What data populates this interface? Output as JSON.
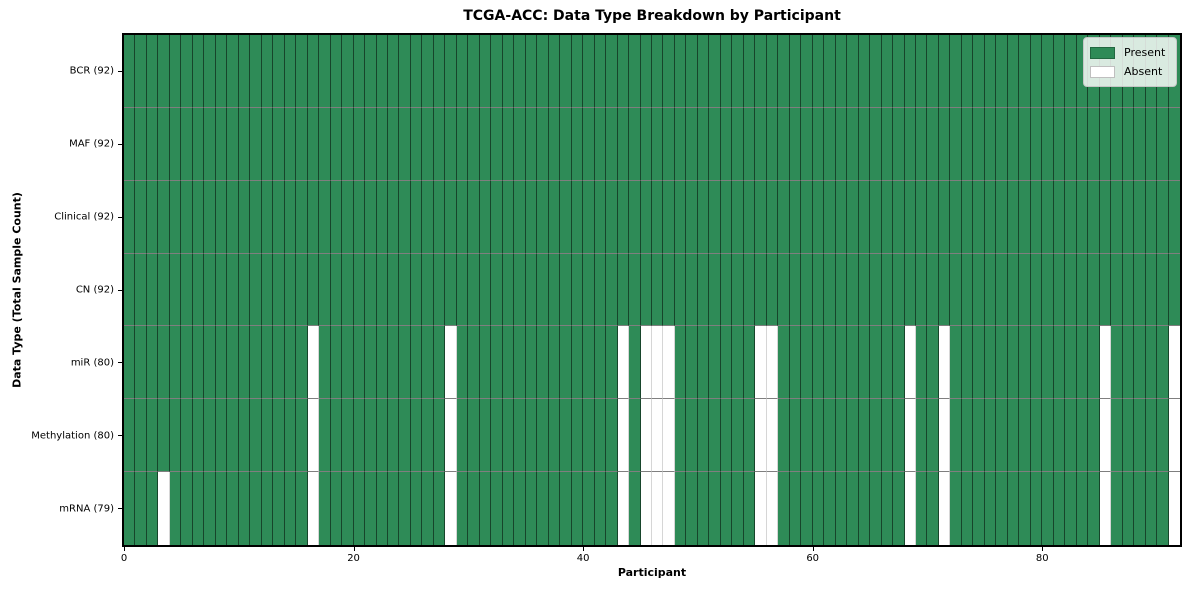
{
  "chart_data": {
    "type": "heatmap",
    "title": "TCGA-ACC: Data Type Breakdown by Participant",
    "xlabel": "Participant",
    "ylabel": "Data Type (Total Sample Count)",
    "n_participants": 92,
    "x_axis_range": [
      0,
      92
    ],
    "xticks": [
      0,
      20,
      40,
      60,
      80
    ],
    "grid": true,
    "legend_position": "upper right",
    "legend": [
      {
        "label": "Present",
        "color": "#2e8b57"
      },
      {
        "label": "Absent",
        "color": "#ffffff"
      }
    ],
    "colors": {
      "present": "#2e8b57",
      "absent": "#ffffff",
      "cell_edge": "#000000",
      "row_separator": "#7f7f7f",
      "plot_border": "#000000"
    },
    "rows": [
      {
        "data_type": "BCR",
        "label": "BCR (92)",
        "present_count": 92,
        "absent_participants": []
      },
      {
        "data_type": "MAF",
        "label": "MAF (92)",
        "present_count": 92,
        "absent_participants": []
      },
      {
        "data_type": "Clinical",
        "label": "Clinical (92)",
        "present_count": 92,
        "absent_participants": []
      },
      {
        "data_type": "CN",
        "label": "CN (92)",
        "present_count": 92,
        "absent_participants": []
      },
      {
        "data_type": "miR",
        "label": "miR (80)",
        "present_count": 80,
        "absent_participants": [
          16,
          28,
          43,
          45,
          46,
          47,
          55,
          56,
          68,
          71,
          85,
          91
        ]
      },
      {
        "data_type": "Methylation",
        "label": "Methylation (80)",
        "present_count": 80,
        "absent_participants": [
          16,
          28,
          43,
          45,
          46,
          47,
          55,
          56,
          68,
          71,
          85,
          91
        ]
      },
      {
        "data_type": "mRNA",
        "label": "mRNA (79)",
        "present_count": 79,
        "absent_participants": [
          3,
          16,
          28,
          43,
          45,
          46,
          47,
          55,
          56,
          68,
          71,
          85,
          91
        ]
      }
    ]
  }
}
